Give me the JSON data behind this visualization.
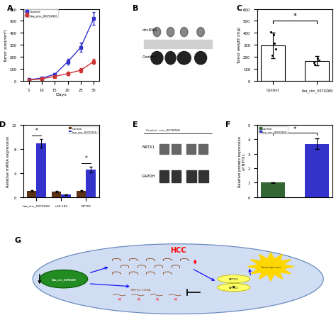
{
  "panel_A": {
    "days": [
      5,
      10,
      15,
      20,
      25,
      30
    ],
    "control_mean": [
      10,
      25,
      55,
      160,
      280,
      520
    ],
    "control_err": [
      4,
      7,
      12,
      22,
      38,
      55
    ],
    "hsa_mean": [
      8,
      18,
      38,
      62,
      90,
      162
    ],
    "hsa_err": [
      3,
      5,
      9,
      14,
      18,
      22
    ],
    "ylabel": "Tumor size(mm³)",
    "xlabel": "Days",
    "ylim": [
      0,
      600
    ],
    "control_color": "#3333CC",
    "hsa_color": "#CC3333",
    "label_control": "Control",
    "label_hsa": "hsa_circ_0070269"
  },
  "panel_C": {
    "categories": [
      "Control",
      "hsa_circ_0070269"
    ],
    "means": [
      295,
      168
    ],
    "errors": [
      105,
      38
    ],
    "scatter_control": [
      215,
      265,
      315,
      385,
      410
    ],
    "scatter_hsa": [
      135,
      152,
      172,
      190
    ],
    "ylabel": "Tumor weight (mg)",
    "ylim": [
      0,
      600
    ],
    "bar_color": "#ffffff",
    "edge_color": "#000000"
  },
  "panel_D": {
    "categories": [
      "hsa_circ_0070269",
      "miR-182",
      "NPTX1"
    ],
    "control_vals": [
      1.0,
      0.9,
      1.0
    ],
    "hsa_vals": [
      9.0,
      0.42,
      4.6
    ],
    "ctrl_err": [
      0.1,
      0.08,
      0.1
    ],
    "hsa_err": [
      0.7,
      0.05,
      0.45
    ],
    "ylabel": "Relative mRNA expression",
    "ylim": [
      0,
      12
    ],
    "yticks": [
      0,
      4,
      8,
      12
    ],
    "control_color": "#5c3317",
    "hsa_color": "#3333CC"
  },
  "panel_F": {
    "means": [
      1.0,
      3.7
    ],
    "errors": [
      0.04,
      0.38
    ],
    "ylabel": "Relative protein expression\nof NPTX1",
    "ylim": [
      0,
      5
    ],
    "yticks": [
      0,
      1,
      2,
      3,
      4,
      5
    ],
    "control_color": "#336633",
    "hsa_color": "#3333CC",
    "label_control": "Control",
    "label_hsa": "hsa_circ_0070269"
  },
  "bg_color": "#ffffff"
}
